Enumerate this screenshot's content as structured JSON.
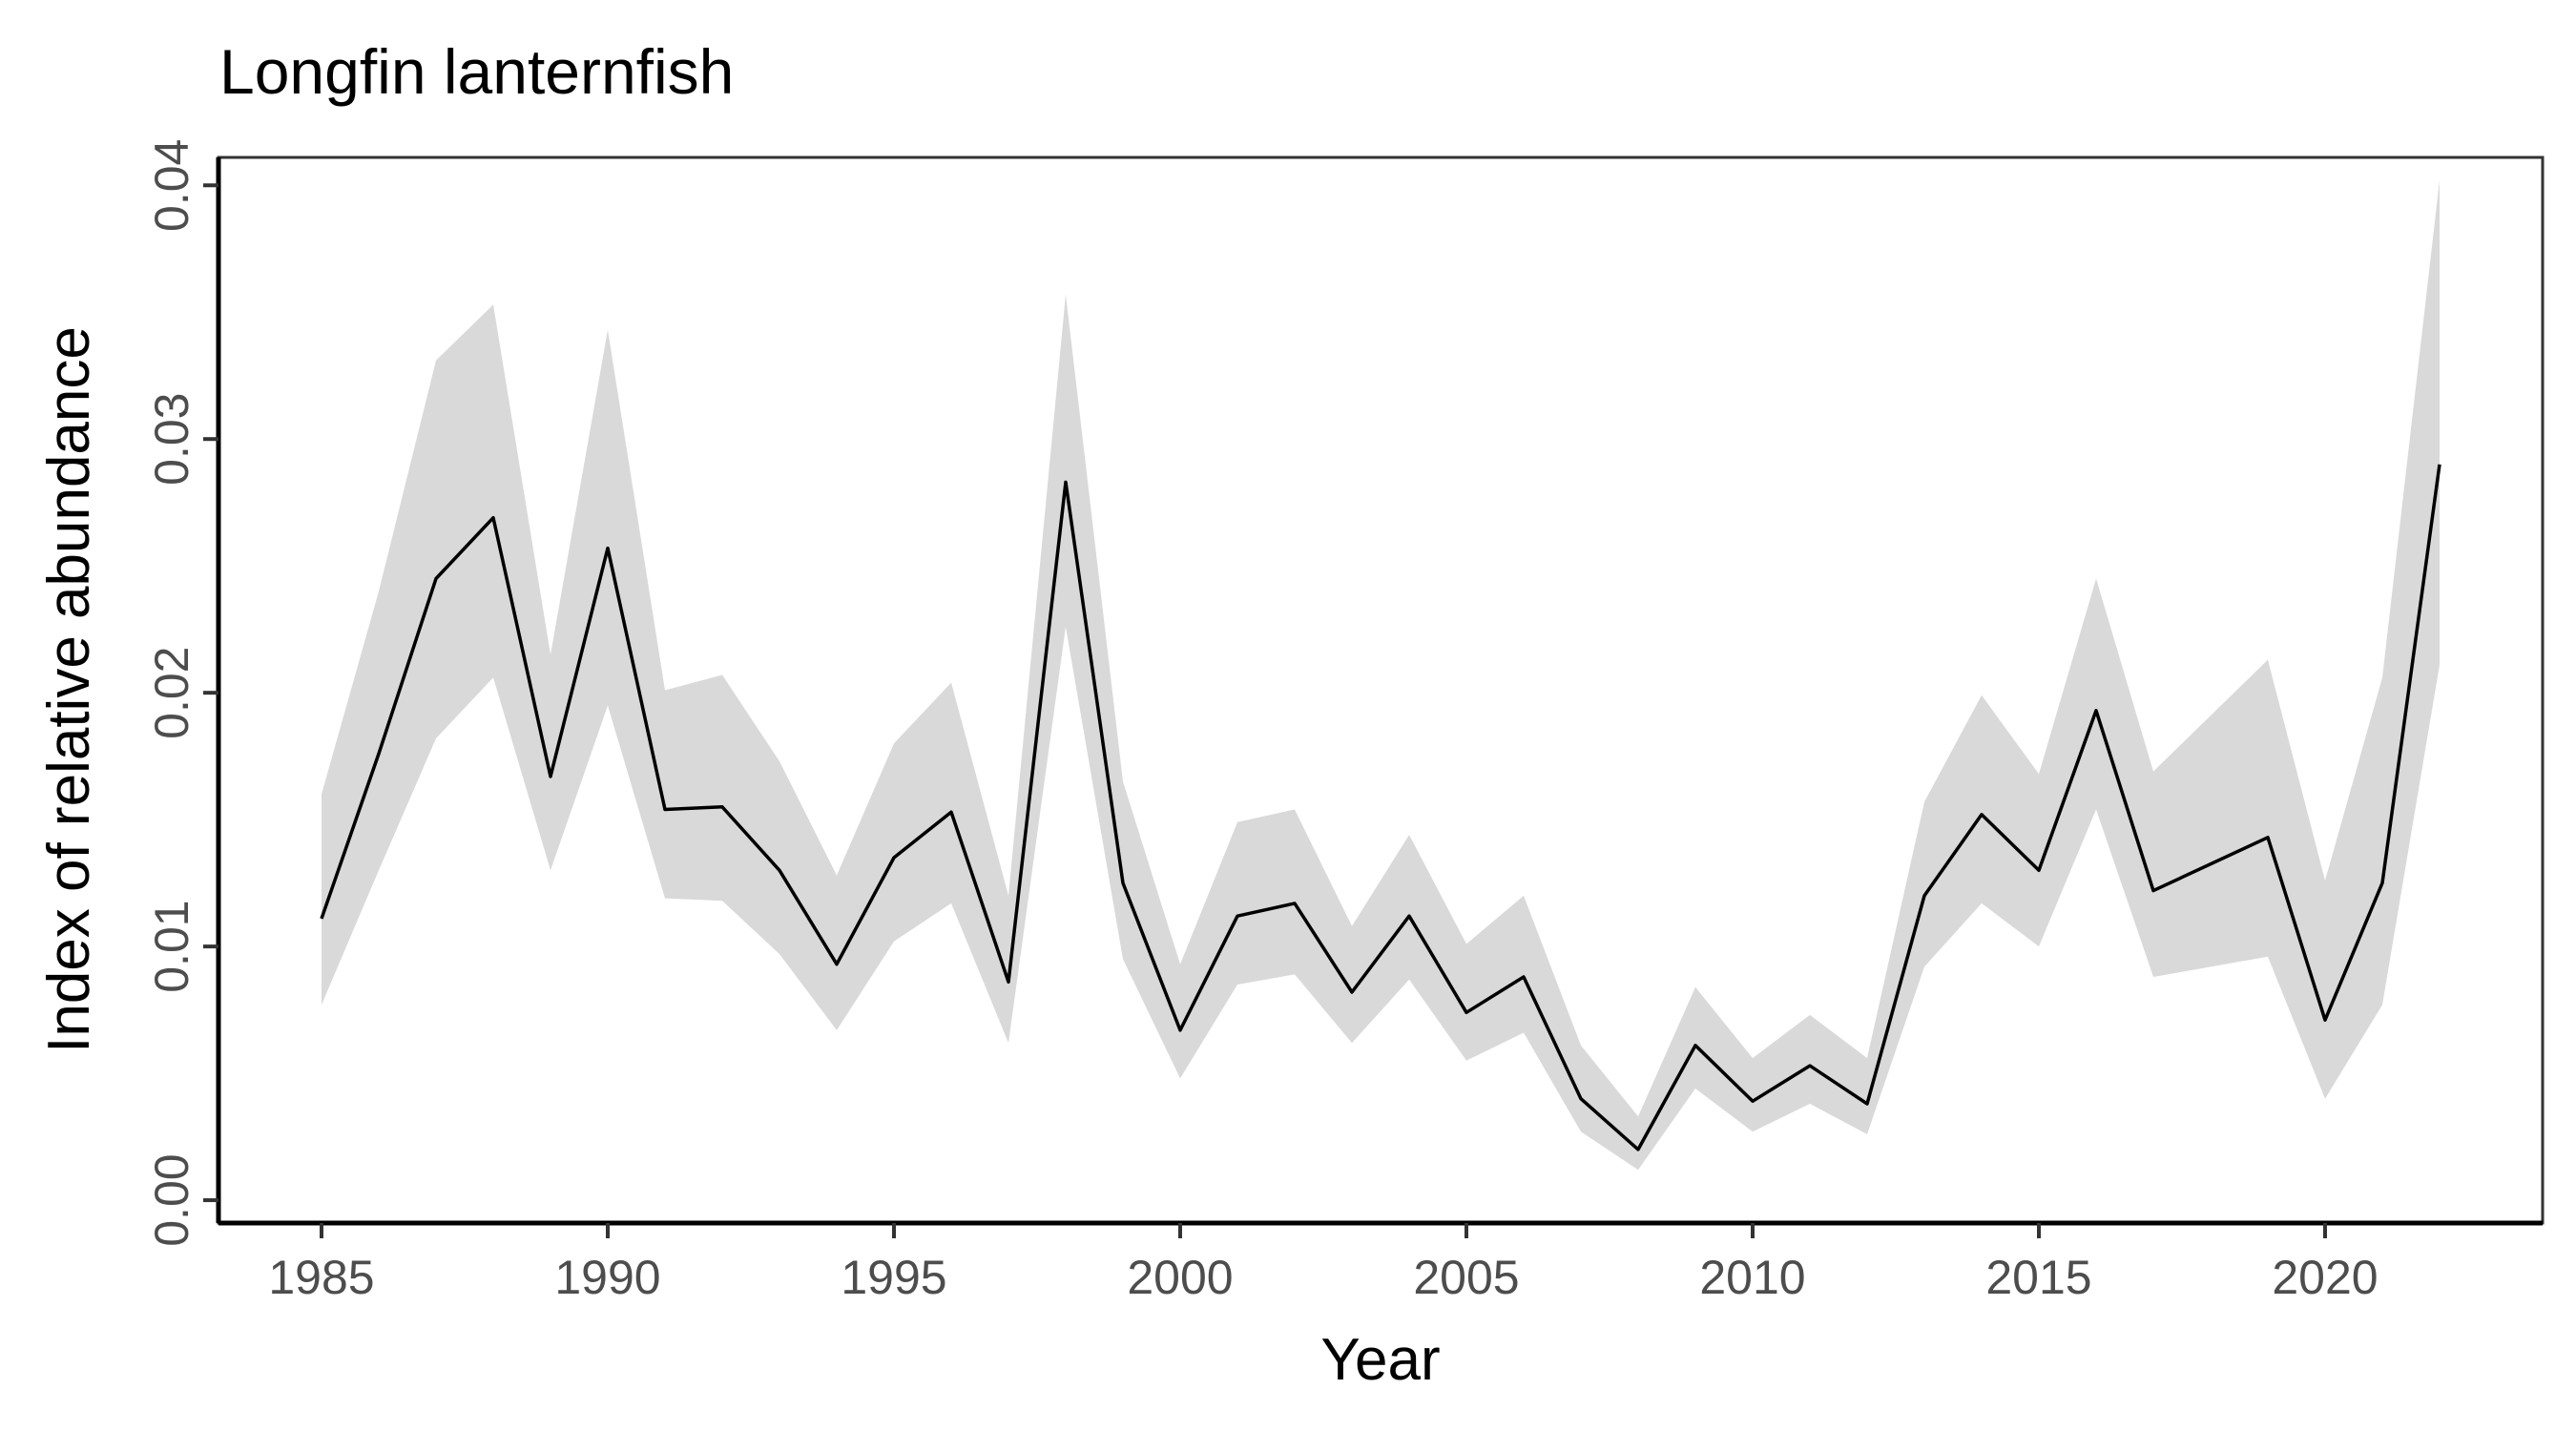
{
  "chart_data": {
    "type": "line",
    "title": "Longfin lanternfish",
    "xlabel": "Year",
    "ylabel": "Index of relative abundance",
    "xlim": [
      1983.2,
      2023.8
    ],
    "ylim": [
      -0.0009,
      0.0411
    ],
    "xticks": [
      1985,
      1990,
      1995,
      2000,
      2005,
      2010,
      2015,
      2020
    ],
    "xtick_labels": [
      "1985",
      "1990",
      "1995",
      "2000",
      "2005",
      "2010",
      "2015",
      "2020"
    ],
    "yticks": [
      0,
      0.01,
      0.02,
      0.03,
      0.04
    ],
    "ytick_labels": [
      "0.00",
      "0.01",
      "0.02",
      "0.03",
      "0.04"
    ],
    "grid": false,
    "colors": {
      "line": "#000000",
      "ribbon": "#d9d9d9"
    },
    "x": [
      1985,
      1986,
      1987,
      1988,
      1989,
      1990,
      1991,
      1992,
      1993,
      1994,
      1995,
      1996,
      1997,
      1998,
      1999,
      2000,
      2001,
      2002,
      2003,
      2004,
      2005,
      2006,
      2007,
      2008,
      2009,
      2010,
      2011,
      2012,
      2013,
      2014,
      2015,
      2016,
      2017,
      2019,
      2020,
      2021,
      2022
    ],
    "y": [
      0.0111,
      0.0176,
      0.0245,
      0.0269,
      0.0167,
      0.0257,
      0.0154,
      0.0155,
      0.013,
      0.0093,
      0.0135,
      0.0153,
      0.0086,
      0.0283,
      0.0125,
      0.0067,
      0.0112,
      0.0117,
      0.0082,
      0.0112,
      0.0074,
      0.0088,
      0.004,
      0.002,
      0.0061,
      0.0039,
      0.0053,
      0.0038,
      0.012,
      0.0152,
      0.013,
      0.0193,
      0.0122,
      0.0143,
      0.0071,
      0.0125,
      0.029
    ],
    "lower": [
      0.0077,
      0.013,
      0.0182,
      0.0206,
      0.013,
      0.0195,
      0.0119,
      0.0118,
      0.0097,
      0.0067,
      0.0102,
      0.0117,
      0.0062,
      0.0226,
      0.0095,
      0.0048,
      0.0085,
      0.0089,
      0.0062,
      0.0087,
      0.0055,
      0.0066,
      0.0027,
      0.0012,
      0.0044,
      0.0027,
      0.0038,
      0.0026,
      0.0092,
      0.0117,
      0.01,
      0.0154,
      0.0088,
      0.0096,
      0.004,
      0.0077,
      0.0211
    ],
    "upper": [
      0.016,
      0.024,
      0.0331,
      0.0353,
      0.0215,
      0.0343,
      0.0201,
      0.0207,
      0.0173,
      0.0128,
      0.018,
      0.0204,
      0.012,
      0.0357,
      0.0165,
      0.0093,
      0.0149,
      0.0154,
      0.0108,
      0.0144,
      0.0101,
      0.012,
      0.0061,
      0.0033,
      0.0084,
      0.0056,
      0.0073,
      0.0056,
      0.0157,
      0.0199,
      0.0168,
      0.0245,
      0.0169,
      0.0213,
      0.0126,
      0.0206,
      0.0402
    ]
  }
}
